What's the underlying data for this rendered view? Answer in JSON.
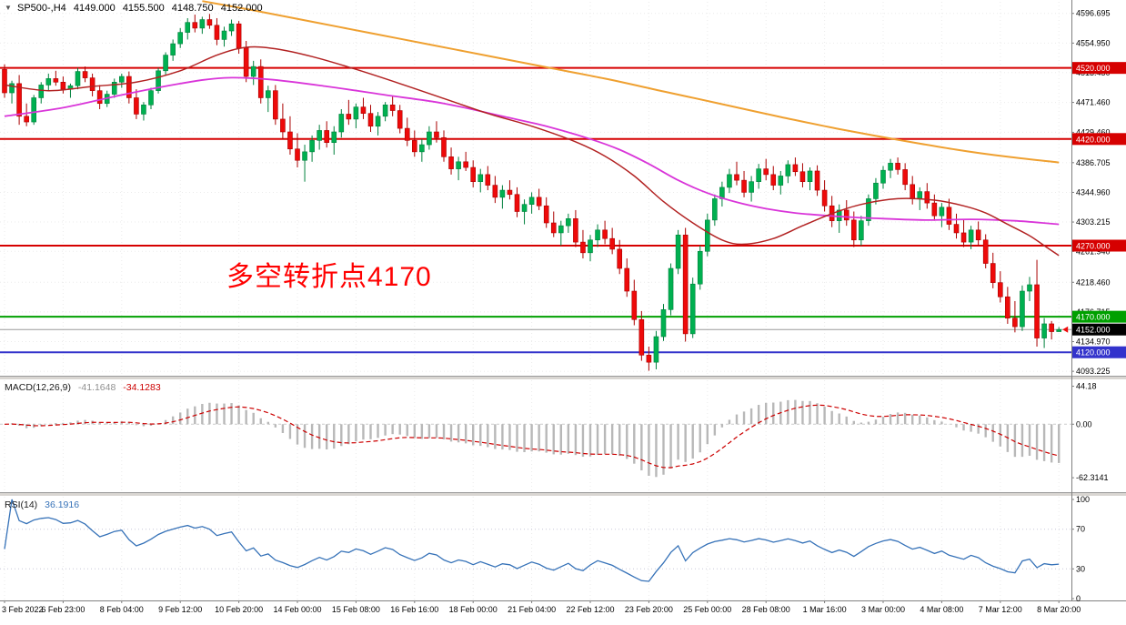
{
  "title": {
    "expander": "▼",
    "symbol_timeframe": "SP500-,H4",
    "open": "4149.000",
    "high": "4155.500",
    "low": "4148.750",
    "close": "4152.000"
  },
  "annotation": {
    "text": "多空转折点4170",
    "color": "#ff0000"
  },
  "indicators": {
    "macd": {
      "label": "MACD(12,26,9)",
      "value_main": "-41.1648",
      "value_signal": "-34.1283"
    },
    "rsi": {
      "label": "RSI(14)",
      "value": "36.1916"
    }
  },
  "axes": {
    "price_ticks": [
      "4596.695",
      "4554.950",
      "4513.450",
      "4471.460",
      "4429.460",
      "4386.705",
      "4344.960",
      "4303.215",
      "4261.940",
      "4218.460",
      "4176.715",
      "4134.970",
      "4093.225"
    ],
    "macd_ticks": [
      "44.18",
      "0.00",
      "-62.3141"
    ],
    "rsi_ticks": [
      "100",
      "70",
      "30",
      "0"
    ],
    "time_labels": [
      "3 Feb 2022",
      "6 Feb 23:00",
      "8 Feb 04:00",
      "9 Feb 12:00",
      "10 Feb 20:00",
      "14 Feb 00:00",
      "15 Feb 08:00",
      "16 Feb 16:00",
      "18 Feb 00:00",
      "21 Feb 04:00",
      "22 Feb 12:00",
      "23 Feb 20:00",
      "25 Feb 00:00",
      "28 Feb 08:00",
      "1 Mar 16:00",
      "3 Mar 00:00",
      "4 Mar 08:00",
      "7 Mar 12:00",
      "8 Mar 20:00"
    ]
  },
  "colors": {
    "bg": "#ffffff",
    "grid": "#ebebeb",
    "candle_up": "#00b050",
    "candle_up_border": "#00803c",
    "candle_down": "#ee0a0a",
    "candle_down_border": "#aa0000",
    "axis_text": "#000000",
    "frame": "#808080"
  },
  "chart_data": {
    "type": "candlestick",
    "symbol": "SP500-",
    "timeframe": "H4",
    "price_range": {
      "min": 4087,
      "max": 4613
    },
    "bars_per_label": 8,
    "candles_ohlc": [
      [
        4518,
        4525,
        4478,
        4485
      ],
      [
        4485,
        4502,
        4470,
        4498
      ],
      [
        4498,
        4510,
        4440,
        4452
      ],
      [
        4452,
        4470,
        4438,
        4444
      ],
      [
        4444,
        4482,
        4440,
        4478
      ],
      [
        4478,
        4500,
        4470,
        4496
      ],
      [
        4496,
        4512,
        4488,
        4505
      ],
      [
        4505,
        4516,
        4495,
        4500
      ],
      [
        4500,
        4508,
        4484,
        4490
      ],
      [
        4490,
        4498,
        4478,
        4495
      ],
      [
        4495,
        4520,
        4490,
        4515
      ],
      [
        4515,
        4522,
        4500,
        4506
      ],
      [
        4506,
        4512,
        4480,
        4488
      ],
      [
        4488,
        4496,
        4462,
        4470
      ],
      [
        4470,
        4488,
        4465,
        4483
      ],
      [
        4483,
        4505,
        4478,
        4500
      ],
      [
        4500,
        4512,
        4492,
        4508
      ],
      [
        4508,
        4515,
        4470,
        4478
      ],
      [
        4478,
        4490,
        4448,
        4455
      ],
      [
        4455,
        4472,
        4446,
        4468
      ],
      [
        4468,
        4492,
        4462,
        4488
      ],
      [
        4488,
        4520,
        4484,
        4516
      ],
      [
        4516,
        4542,
        4510,
        4538
      ],
      [
        4538,
        4560,
        4530,
        4554
      ],
      [
        4554,
        4576,
        4548,
        4570
      ],
      [
        4570,
        4590,
        4560,
        4584
      ],
      [
        4584,
        4595,
        4570,
        4576
      ],
      [
        4576,
        4592,
        4568,
        4588
      ],
      [
        4588,
        4596,
        4575,
        4580
      ],
      [
        4580,
        4590,
        4552,
        4560
      ],
      [
        4560,
        4578,
        4550,
        4572
      ],
      [
        4572,
        4588,
        4565,
        4582
      ],
      [
        4582,
        4586,
        4540,
        4548
      ],
      [
        4548,
        4558,
        4500,
        4508
      ],
      [
        4508,
        4530,
        4496,
        4522
      ],
      [
        4522,
        4532,
        4470,
        4478
      ],
      [
        4478,
        4495,
        4458,
        4488
      ],
      [
        4488,
        4496,
        4440,
        4448
      ],
      [
        4448,
        4470,
        4420,
        4430
      ],
      [
        4430,
        4452,
        4398,
        4406
      ],
      [
        4406,
        4428,
        4380,
        4390
      ],
      [
        4390,
        4412,
        4360,
        4402
      ],
      [
        4402,
        4425,
        4388,
        4418
      ],
      [
        4418,
        4440,
        4405,
        4432
      ],
      [
        4432,
        4445,
        4408,
        4415
      ],
      [
        4415,
        4438,
        4398,
        4430
      ],
      [
        4430,
        4462,
        4422,
        4455
      ],
      [
        4455,
        4475,
        4440,
        4448
      ],
      [
        4448,
        4470,
        4435,
        4465
      ],
      [
        4465,
        4478,
        4448,
        4456
      ],
      [
        4456,
        4468,
        4430,
        4438
      ],
      [
        4438,
        4458,
        4425,
        4452
      ],
      [
        4452,
        4472,
        4445,
        4468
      ],
      [
        4468,
        4480,
        4452,
        4460
      ],
      [
        4460,
        4468,
        4428,
        4435
      ],
      [
        4435,
        4450,
        4410,
        4418
      ],
      [
        4418,
        4432,
        4395,
        4402
      ],
      [
        4402,
        4420,
        4388,
        4412
      ],
      [
        4412,
        4438,
        4405,
        4430
      ],
      [
        4430,
        4445,
        4415,
        4422
      ],
      [
        4422,
        4432,
        4388,
        4395
      ],
      [
        4395,
        4408,
        4370,
        4378
      ],
      [
        4378,
        4395,
        4362,
        4388
      ],
      [
        4388,
        4402,
        4375,
        4380
      ],
      [
        4380,
        4390,
        4352,
        4360
      ],
      [
        4360,
        4378,
        4345,
        4370
      ],
      [
        4370,
        4382,
        4348,
        4355
      ],
      [
        4355,
        4368,
        4330,
        4338
      ],
      [
        4338,
        4355,
        4322,
        4348
      ],
      [
        4348,
        4362,
        4335,
        4342
      ],
      [
        4342,
        4352,
        4310,
        4318
      ],
      [
        4318,
        4335,
        4300,
        4328
      ],
      [
        4328,
        4345,
        4315,
        4338
      ],
      [
        4338,
        4350,
        4320,
        4326
      ],
      [
        4326,
        4338,
        4295,
        4302
      ],
      [
        4302,
        4318,
        4282,
        4288
      ],
      [
        4288,
        4305,
        4270,
        4298
      ],
      [
        4298,
        4315,
        4288,
        4308
      ],
      [
        4308,
        4320,
        4268,
        4275
      ],
      [
        4275,
        4292,
        4252,
        4260
      ],
      [
        4260,
        4285,
        4248,
        4278
      ],
      [
        4278,
        4300,
        4268,
        4292
      ],
      [
        4292,
        4305,
        4272,
        4280
      ],
      [
        4280,
        4295,
        4258,
        4265
      ],
      [
        4265,
        4278,
        4230,
        4238
      ],
      [
        4238,
        4252,
        4198,
        4206
      ],
      [
        4206,
        4222,
        4158,
        4166
      ],
      [
        4166,
        4178,
        4108,
        4116
      ],
      [
        4116,
        4128,
        4094,
        4106
      ],
      [
        4106,
        4150,
        4096,
        4142
      ],
      [
        4142,
        4188,
        4136,
        4180
      ],
      [
        4180,
        4245,
        4172,
        4238
      ],
      [
        4238,
        4292,
        4230,
        4285
      ],
      [
        4285,
        4295,
        4135,
        4146
      ],
      [
        4146,
        4225,
        4140,
        4216
      ],
      [
        4216,
        4270,
        4208,
        4262
      ],
      [
        4262,
        4315,
        4255,
        4306
      ],
      [
        4306,
        4342,
        4298,
        4336
      ],
      [
        4336,
        4360,
        4325,
        4352
      ],
      [
        4352,
        4378,
        4344,
        4370
      ],
      [
        4370,
        4388,
        4355,
        4362
      ],
      [
        4362,
        4375,
        4338,
        4345
      ],
      [
        4345,
        4368,
        4332,
        4360
      ],
      [
        4360,
        4385,
        4350,
        4378
      ],
      [
        4378,
        4392,
        4362,
        4370
      ],
      [
        4370,
        4382,
        4348,
        4355
      ],
      [
        4355,
        4375,
        4342,
        4368
      ],
      [
        4368,
        4390,
        4358,
        4384
      ],
      [
        4384,
        4394,
        4368,
        4374
      ],
      [
        4374,
        4386,
        4352,
        4360
      ],
      [
        4360,
        4380,
        4348,
        4375
      ],
      [
        4375,
        4383,
        4340,
        4348
      ],
      [
        4348,
        4362,
        4318,
        4326
      ],
      [
        4326,
        4340,
        4296,
        4305
      ],
      [
        4305,
        4328,
        4288,
        4320
      ],
      [
        4320,
        4334,
        4298,
        4306
      ],
      [
        4306,
        4318,
        4268,
        4278
      ],
      [
        4278,
        4312,
        4270,
        4305
      ],
      [
        4305,
        4342,
        4298,
        4336
      ],
      [
        4336,
        4365,
        4328,
        4358
      ],
      [
        4358,
        4382,
        4350,
        4376
      ],
      [
        4376,
        4392,
        4365,
        4386
      ],
      [
        4386,
        4394,
        4370,
        4377
      ],
      [
        4377,
        4386,
        4348,
        4356
      ],
      [
        4356,
        4368,
        4328,
        4336
      ],
      [
        4336,
        4352,
        4320,
        4346
      ],
      [
        4346,
        4358,
        4322,
        4330
      ],
      [
        4330,
        4342,
        4305,
        4312
      ],
      [
        4312,
        4330,
        4296,
        4324
      ],
      [
        4324,
        4336,
        4292,
        4300
      ],
      [
        4300,
        4315,
        4280,
        4288
      ],
      [
        4288,
        4306,
        4268,
        4275
      ],
      [
        4275,
        4298,
        4265,
        4292
      ],
      [
        4292,
        4304,
        4270,
        4278
      ],
      [
        4278,
        4286,
        4238,
        4245
      ],
      [
        4245,
        4260,
        4210,
        4218
      ],
      [
        4218,
        4234,
        4190,
        4198
      ],
      [
        4198,
        4212,
        4160,
        4168
      ],
      [
        4168,
        4192,
        4148,
        4156
      ],
      [
        4156,
        4214,
        4150,
        4206
      ],
      [
        4206,
        4226,
        4192,
        4215
      ],
      [
        4215,
        4250,
        4128,
        4140
      ],
      [
        4140,
        4168,
        4126,
        4160
      ],
      [
        4160,
        4164,
        4138,
        4149
      ],
      [
        4149,
        4155.5,
        4148.75,
        4152
      ]
    ],
    "horizontal_levels": [
      {
        "value": 4520,
        "label": "4520.000",
        "color": "#d60000"
      },
      {
        "value": 4420,
        "label": "4420.000",
        "color": "#d60000"
      },
      {
        "value": 4270,
        "label": "4270.000",
        "color": "#d60000"
      },
      {
        "value": 4170,
        "label": "4170.000",
        "color": "#00a000"
      },
      {
        "value": 4120,
        "label": "4120.000",
        "color": "#3333cc"
      }
    ],
    "current_price": {
      "value": 4152,
      "label": "4152.000",
      "tag_bg": "#000000",
      "line_color": "#9a9a9a"
    },
    "overlays": [
      {
        "name": "ma-slow-orange",
        "color": "#efa030",
        "width": 2,
        "points": [
          [
            27,
            4614
          ],
          [
            34,
            4601
          ],
          [
            42,
            4585
          ],
          [
            50,
            4569
          ],
          [
            58,
            4553
          ],
          [
            66,
            4537
          ],
          [
            74,
            4521
          ],
          [
            82,
            4505
          ],
          [
            90,
            4487
          ],
          [
            98,
            4469
          ],
          [
            106,
            4451
          ],
          [
            114,
            4434
          ],
          [
            122,
            4419
          ],
          [
            130,
            4405
          ],
          [
            137,
            4395
          ],
          [
            144,
            4387
          ]
        ]
      },
      {
        "name": "ma-mid-magenta",
        "color": "#d935d9",
        "width": 1.8,
        "points": [
          [
            0,
            4452
          ],
          [
            8,
            4464
          ],
          [
            16,
            4482
          ],
          [
            24,
            4498
          ],
          [
            30,
            4506
          ],
          [
            36,
            4504
          ],
          [
            44,
            4494
          ],
          [
            52,
            4482
          ],
          [
            60,
            4470
          ],
          [
            68,
            4452
          ],
          [
            74,
            4438
          ],
          [
            80,
            4420
          ],
          [
            84,
            4405
          ],
          [
            88,
            4385
          ],
          [
            92,
            4362
          ],
          [
            96,
            4344
          ],
          [
            100,
            4331
          ],
          [
            104,
            4322
          ],
          [
            108,
            4316
          ],
          [
            114,
            4311
          ],
          [
            120,
            4308
          ],
          [
            126,
            4306
          ],
          [
            132,
            4307
          ],
          [
            138,
            4305
          ],
          [
            144,
            4300
          ]
        ]
      },
      {
        "name": "ma-fast-darkred",
        "color": "#b22222",
        "width": 1.5,
        "points": [
          [
            0,
            4496
          ],
          [
            6,
            4488
          ],
          [
            12,
            4494
          ],
          [
            18,
            4500
          ],
          [
            24,
            4516
          ],
          [
            29,
            4538
          ],
          [
            33,
            4549
          ],
          [
            37,
            4547
          ],
          [
            42,
            4536
          ],
          [
            48,
            4518
          ],
          [
            54,
            4498
          ],
          [
            60,
            4477
          ],
          [
            66,
            4456
          ],
          [
            72,
            4438
          ],
          [
            78,
            4416
          ],
          [
            82,
            4396
          ],
          [
            86,
            4368
          ],
          [
            90,
            4332
          ],
          [
            94,
            4302
          ],
          [
            98,
            4278
          ],
          [
            101,
            4272
          ],
          [
            105,
            4280
          ],
          [
            109,
            4298
          ],
          [
            113,
            4315
          ],
          [
            117,
            4328
          ],
          [
            122,
            4336
          ],
          [
            127,
            4334
          ],
          [
            131,
            4326
          ],
          [
            134,
            4316
          ],
          [
            137,
            4300
          ],
          [
            140,
            4284
          ],
          [
            142,
            4270
          ],
          [
            144,
            4256
          ]
        ]
      }
    ],
    "macd": {
      "params": [
        12,
        26,
        9
      ],
      "range": {
        "min": -77,
        "max": 49
      },
      "histogram_color": "#b8b8b8",
      "signal_color": "#cc0000",
      "zero_line": 0
    },
    "rsi": {
      "period": 14,
      "range": {
        "min": 0,
        "max": 100
      },
      "levels": [
        70,
        30
      ],
      "color": "#3672b8"
    }
  }
}
